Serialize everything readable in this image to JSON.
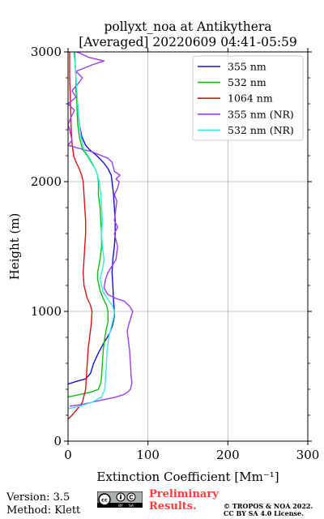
{
  "title_line1": "pollyxt_noa at Antikythera",
  "title_line2": "[Averaged] 20220609 04:41-05:59",
  "footer": {
    "version": "Version: 3.5",
    "method": "Method: Klett",
    "preliminary_line1": "Preliminary",
    "preliminary_line2": "Results.",
    "copyright_line1": "© TROPOS & NOA 2022.",
    "copyright_line2": "CC BY SA 4.0 License.",
    "license_badge": [
      "cc",
      "BY",
      "SA"
    ]
  },
  "chart_data": {
    "type": "line",
    "xlabel": "Extinction Coefficient [Mm⁻¹]",
    "ylabel": "Height (m)",
    "xlim": [
      0,
      300
    ],
    "ylim": [
      0,
      3000
    ],
    "xticks": [
      0,
      100,
      200,
      300
    ],
    "yticks": [
      0,
      1000,
      2000,
      3000
    ],
    "grid": true,
    "legend_position": "top-right",
    "series": [
      {
        "name": "355 nm",
        "color": "#1010dd",
        "points": [
          [
            0,
            440
          ],
          [
            10,
            460
          ],
          [
            22,
            480
          ],
          [
            28,
            520
          ],
          [
            32,
            600
          ],
          [
            38,
            680
          ],
          [
            45,
            760
          ],
          [
            52,
            830
          ],
          [
            56,
            900
          ],
          [
            58,
            960
          ],
          [
            58,
            1000
          ],
          [
            57,
            1080
          ],
          [
            56,
            1200
          ],
          [
            55,
            1300
          ],
          [
            56,
            1400
          ],
          [
            58,
            1500
          ],
          [
            59,
            1600
          ],
          [
            59,
            1700
          ],
          [
            58,
            1800
          ],
          [
            57,
            1900
          ],
          [
            56,
            1950
          ],
          [
            55,
            2000
          ],
          [
            54,
            2050
          ],
          [
            50,
            2100
          ],
          [
            44,
            2150
          ],
          [
            36,
            2200
          ],
          [
            28,
            2240
          ],
          [
            22,
            2280
          ],
          [
            17,
            2350
          ],
          [
            14,
            2450
          ],
          [
            12,
            2600
          ],
          [
            10,
            2700
          ],
          [
            10,
            2800
          ],
          [
            9,
            2900
          ],
          [
            8,
            3000
          ]
        ]
      },
      {
        "name": "532 nm",
        "color": "#11bb11",
        "points": [
          [
            0,
            340
          ],
          [
            15,
            360
          ],
          [
            30,
            380
          ],
          [
            38,
            400
          ],
          [
            41,
            450
          ],
          [
            42,
            500
          ],
          [
            43,
            600
          ],
          [
            44,
            700
          ],
          [
            46,
            800
          ],
          [
            48,
            870
          ],
          [
            50,
            920
          ],
          [
            50,
            1000
          ],
          [
            48,
            1050
          ],
          [
            44,
            1100
          ],
          [
            40,
            1160
          ],
          [
            37,
            1250
          ],
          [
            37,
            1300
          ],
          [
            40,
            1400
          ],
          [
            42,
            1500
          ],
          [
            42,
            1600
          ],
          [
            41,
            1700
          ],
          [
            40,
            1800
          ],
          [
            38,
            1900
          ],
          [
            38,
            2000
          ],
          [
            37,
            2050
          ],
          [
            34,
            2100
          ],
          [
            29,
            2150
          ],
          [
            24,
            2200
          ],
          [
            18,
            2250
          ],
          [
            14,
            2350
          ],
          [
            12,
            2450
          ],
          [
            11,
            2600
          ],
          [
            10,
            2700
          ],
          [
            10,
            2800
          ],
          [
            9,
            2900
          ],
          [
            8,
            3000
          ]
        ]
      },
      {
        "name": "1064 nm",
        "color": "#dd1111",
        "points": [
          [
            0,
            170
          ],
          [
            5,
            200
          ],
          [
            12,
            250
          ],
          [
            18,
            300
          ],
          [
            22,
            400
          ],
          [
            23,
            500
          ],
          [
            24,
            600
          ],
          [
            25,
            700
          ],
          [
            27,
            800
          ],
          [
            29,
            900
          ],
          [
            30,
            1000
          ],
          [
            28,
            1050
          ],
          [
            24,
            1100
          ],
          [
            20,
            1200
          ],
          [
            19,
            1300
          ],
          [
            20,
            1400
          ],
          [
            21,
            1500
          ],
          [
            22,
            1600
          ],
          [
            22,
            1700
          ],
          [
            21,
            1800
          ],
          [
            20,
            1900
          ],
          [
            19,
            2000
          ],
          [
            17,
            2050
          ],
          [
            14,
            2100
          ],
          [
            10,
            2150
          ],
          [
            7,
            2200
          ],
          [
            5,
            2300
          ],
          [
            4,
            2400
          ],
          [
            3,
            2600
          ],
          [
            2,
            2800
          ],
          [
            2,
            3000
          ]
        ]
      },
      {
        "name": "355 nm (NR)",
        "color": "#9b3cf5",
        "points": [
          [
            2,
            270
          ],
          [
            15,
            280
          ],
          [
            30,
            300
          ],
          [
            45,
            320
          ],
          [
            60,
            340
          ],
          [
            70,
            360
          ],
          [
            75,
            380
          ],
          [
            78,
            400
          ],
          [
            80,
            450
          ],
          [
            79,
            500
          ],
          [
            78,
            600
          ],
          [
            77,
            700
          ],
          [
            75,
            800
          ],
          [
            74,
            850
          ],
          [
            76,
            900
          ],
          [
            79,
            960
          ],
          [
            81,
            1000
          ],
          [
            77,
            1040
          ],
          [
            70,
            1080
          ],
          [
            60,
            1100
          ],
          [
            50,
            1130
          ],
          [
            45,
            1180
          ],
          [
            47,
            1250
          ],
          [
            50,
            1300
          ],
          [
            55,
            1350
          ],
          [
            60,
            1400
          ],
          [
            62,
            1500
          ],
          [
            60,
            1550
          ],
          [
            58,
            1600
          ],
          [
            62,
            1650
          ],
          [
            58,
            1700
          ],
          [
            60,
            1800
          ],
          [
            61,
            1850
          ],
          [
            58,
            1900
          ],
          [
            62,
            1950
          ],
          [
            64,
            2000
          ],
          [
            60,
            2020
          ],
          [
            65,
            2050
          ],
          [
            58,
            2080
          ],
          [
            55,
            2150
          ],
          [
            50,
            2180
          ],
          [
            30,
            2230
          ],
          [
            12,
            2260
          ],
          [
            0,
            2280
          ],
          [
            5,
            2320
          ],
          [
            2,
            2400
          ],
          [
            0,
            2440
          ],
          [
            4,
            2500
          ],
          [
            8,
            2550
          ],
          [
            0,
            2600
          ],
          [
            10,
            2650
          ],
          [
            5,
            2700
          ],
          [
            12,
            2750
          ],
          [
            18,
            2800
          ],
          [
            10,
            2850
          ],
          [
            30,
            2900
          ],
          [
            45,
            2930
          ],
          [
            25,
            2960
          ],
          [
            15,
            2990
          ],
          [
            10,
            3000
          ]
        ]
      },
      {
        "name": "532 nm (NR)",
        "color": "#33eedd",
        "points": [
          [
            0,
            250
          ],
          [
            15,
            270
          ],
          [
            30,
            300
          ],
          [
            42,
            340
          ],
          [
            46,
            400
          ],
          [
            47,
            500
          ],
          [
            48,
            600
          ],
          [
            49,
            700
          ],
          [
            51,
            800
          ],
          [
            54,
            880
          ],
          [
            57,
            950
          ],
          [
            58,
            1000
          ],
          [
            55,
            1050
          ],
          [
            49,
            1100
          ],
          [
            44,
            1150
          ],
          [
            42,
            1200
          ],
          [
            40,
            1250
          ],
          [
            42,
            1300
          ],
          [
            44,
            1350
          ],
          [
            45,
            1400
          ],
          [
            44,
            1450
          ],
          [
            43,
            1500
          ],
          [
            42,
            1600
          ],
          [
            43,
            1700
          ],
          [
            42,
            1800
          ],
          [
            41,
            1900
          ],
          [
            40,
            1950
          ],
          [
            39,
            2000
          ],
          [
            37,
            2050
          ],
          [
            34,
            2100
          ],
          [
            30,
            2150
          ],
          [
            25,
            2200
          ],
          [
            20,
            2250
          ],
          [
            16,
            2350
          ],
          [
            14,
            2450
          ],
          [
            12,
            2600
          ],
          [
            11,
            2700
          ],
          [
            10,
            2800
          ],
          [
            9,
            2900
          ],
          [
            7,
            3000
          ]
        ]
      }
    ]
  }
}
